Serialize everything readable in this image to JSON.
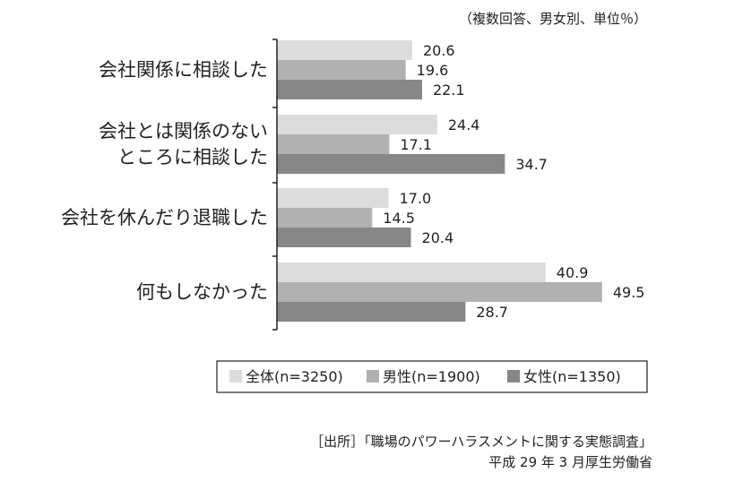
{
  "unit_note": "（複数回答、男女別、単位％）",
  "chart_data": {
    "type": "bar",
    "orientation": "horizontal",
    "categories": [
      [
        "会社関係に相談した"
      ],
      [
        "会社とは関係のない",
        "ところに相談した"
      ],
      [
        "会社を休んだり退職した"
      ],
      [
        "何もしなかった"
      ]
    ],
    "series": [
      {
        "name": "全体(n=3250)",
        "color": "#dcdcdc",
        "values": [
          20.6,
          24.4,
          17.0,
          40.9
        ]
      },
      {
        "name": "男性(n=1900)",
        "color": "#b1b1b1",
        "values": [
          19.6,
          17.1,
          14.5,
          49.5
        ]
      },
      {
        "name": "女性(n=1350)",
        "color": "#878787",
        "values": [
          22.1,
          34.7,
          20.4,
          28.7
        ]
      }
    ],
    "value_labels": [
      [
        "20.6",
        "24.4",
        "17.0",
        "40.9"
      ],
      [
        "19.6",
        "17.1",
        "14.5",
        "49.5"
      ],
      [
        "22.1",
        "34.7",
        "20.4",
        "28.7"
      ]
    ],
    "legend_position": "bottom",
    "grid": false
  },
  "source": {
    "line1": "［出所］「職場のパワーハラスメントに関する実態調査」",
    "line2": "平成 29 年 3 月厚生労働省"
  }
}
